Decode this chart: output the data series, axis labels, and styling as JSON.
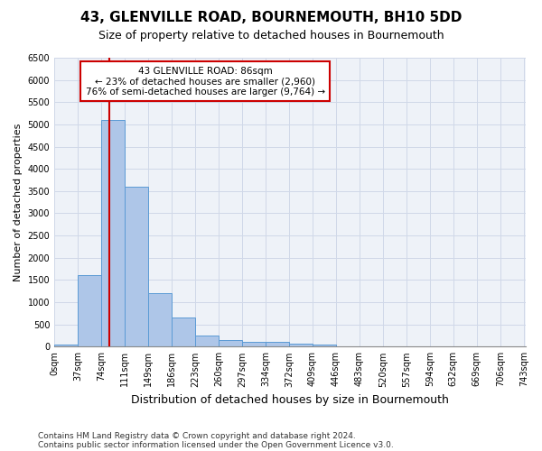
{
  "title": "43, GLENVILLE ROAD, BOURNEMOUTH, BH10 5DD",
  "subtitle": "Size of property relative to detached houses in Bournemouth",
  "xlabel": "Distribution of detached houses by size in Bournemouth",
  "ylabel": "Number of detached properties",
  "footer_line1": "Contains HM Land Registry data © Crown copyright and database right 2024.",
  "footer_line2": "Contains public sector information licensed under the Open Government Licence v3.0.",
  "bar_values": [
    50,
    1600,
    5100,
    3600,
    1200,
    650,
    250,
    150,
    100,
    100,
    75,
    50,
    0,
    0,
    0,
    0,
    0,
    0,
    0,
    0
  ],
  "bin_labels": [
    "0sqm",
    "37sqm",
    "74sqm",
    "111sqm",
    "149sqm",
    "186sqm",
    "223sqm",
    "260sqm",
    "297sqm",
    "334sqm",
    "372sqm",
    "409sqm",
    "446sqm",
    "483sqm",
    "520sqm",
    "557sqm",
    "594sqm",
    "632sqm",
    "669sqm",
    "706sqm",
    "743sqm"
  ],
  "ylim": [
    0,
    6500
  ],
  "yticks": [
    0,
    500,
    1000,
    1500,
    2000,
    2500,
    3000,
    3500,
    4000,
    4500,
    5000,
    5500,
    6000,
    6500
  ],
  "bar_color": "#aec6e8",
  "bar_edge_color": "#5b9bd5",
  "grid_color": "#d0d8e8",
  "bg_color": "#eef2f8",
  "property_label": "43 GLENVILLE ROAD: 86sqm",
  "annotation_line1": "← 23% of detached houses are smaller (2,960)",
  "annotation_line2": "76% of semi-detached houses are larger (9,764) →",
  "red_line_x": 86,
  "vline_color": "#cc0000",
  "annotation_box_color": "#cc0000",
  "title_fontsize": 11,
  "subtitle_fontsize": 9,
  "xlabel_fontsize": 9,
  "ylabel_fontsize": 8,
  "tick_fontsize": 7,
  "annotation_fontsize": 7.5,
  "footer_fontsize": 6.5
}
